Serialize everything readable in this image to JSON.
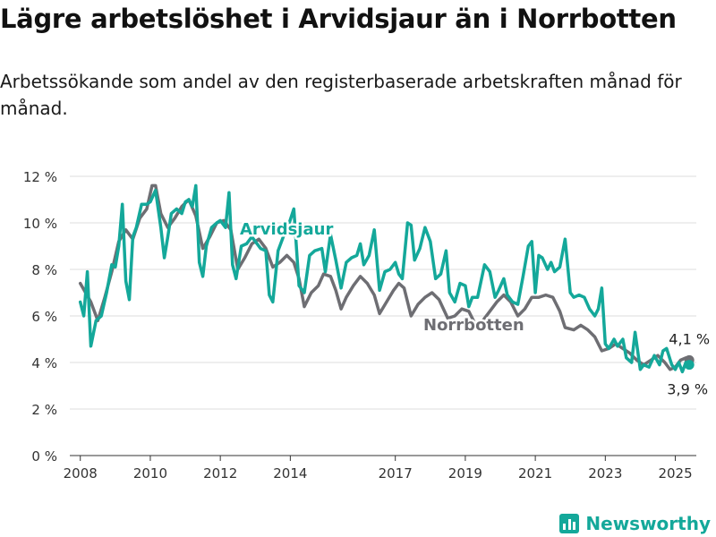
{
  "title": "Lägre arbetslöshet i Arvidsjaur än i Norrbotten",
  "subtitle": "Arbetssökande som andel av den registerbaserade arbetskraften månad för månad.",
  "brand": {
    "name": "Newsworthy",
    "icon": "bar-chart-icon",
    "color": "#14a89a"
  },
  "chart_data": {
    "type": "line",
    "title": "Lägre arbetslöshet i Arvidsjaur än i Norrbotten",
    "xlabel": "",
    "ylabel": "",
    "ylim": [
      0,
      12
    ],
    "xlim": [
      2007.7,
      2025.6
    ],
    "grid": true,
    "yticks": [
      0,
      2,
      4,
      6,
      8,
      10,
      12
    ],
    "ytick_labels": [
      "0 %",
      "2 %",
      "4 %",
      "6 %",
      "8 %",
      "10 %",
      "12 %"
    ],
    "xticks": [
      2008,
      2010,
      2012,
      2014,
      2017,
      2019,
      2021,
      2023,
      2025
    ],
    "xtick_labels": [
      "2008",
      "2010",
      "2012",
      "2014",
      "2017",
      "2019",
      "2021",
      "2023",
      "2025"
    ],
    "series": [
      {
        "name": "Arvidsjaur",
        "color": "#14a89a",
        "end_label": "3,9 %",
        "points": [
          [
            2008.0,
            6.6
          ],
          [
            2008.1,
            6.0
          ],
          [
            2008.2,
            7.9
          ],
          [
            2008.3,
            4.7
          ],
          [
            2008.45,
            5.8
          ],
          [
            2008.6,
            6.0
          ],
          [
            2008.75,
            7.0
          ],
          [
            2008.9,
            8.2
          ],
          [
            2009.0,
            8.1
          ],
          [
            2009.1,
            9.0
          ],
          [
            2009.2,
            10.8
          ],
          [
            2009.3,
            7.5
          ],
          [
            2009.4,
            6.7
          ],
          [
            2009.5,
            9.4
          ],
          [
            2009.6,
            9.8
          ],
          [
            2009.75,
            10.8
          ],
          [
            2009.9,
            10.8
          ],
          [
            2010.0,
            10.9
          ],
          [
            2010.15,
            11.4
          ],
          [
            2010.3,
            9.8
          ],
          [
            2010.4,
            8.5
          ],
          [
            2010.5,
            9.4
          ],
          [
            2010.6,
            10.4
          ],
          [
            2010.75,
            10.6
          ],
          [
            2010.9,
            10.4
          ],
          [
            2011.0,
            10.9
          ],
          [
            2011.1,
            11.0
          ],
          [
            2011.2,
            10.7
          ],
          [
            2011.3,
            11.6
          ],
          [
            2011.4,
            8.3
          ],
          [
            2011.5,
            7.7
          ],
          [
            2011.6,
            9.0
          ],
          [
            2011.75,
            9.8
          ],
          [
            2011.9,
            10.0
          ],
          [
            2012.0,
            10.1
          ],
          [
            2012.15,
            9.8
          ],
          [
            2012.25,
            11.3
          ],
          [
            2012.35,
            8.2
          ],
          [
            2012.45,
            7.6
          ],
          [
            2012.6,
            9.0
          ],
          [
            2012.75,
            9.1
          ],
          [
            2012.9,
            9.4
          ],
          [
            2013.0,
            9.2
          ],
          [
            2013.15,
            8.9
          ],
          [
            2013.3,
            8.8
          ],
          [
            2013.4,
            6.9
          ],
          [
            2013.5,
            6.6
          ],
          [
            2013.65,
            8.8
          ],
          [
            2013.8,
            9.4
          ],
          [
            2013.95,
            9.9
          ],
          [
            2014.1,
            10.6
          ],
          [
            2014.25,
            7.3
          ],
          [
            2014.4,
            7.0
          ],
          [
            2014.55,
            8.6
          ],
          [
            2014.7,
            8.8
          ],
          [
            2014.9,
            8.9
          ],
          [
            2015.0,
            7.9
          ],
          [
            2015.15,
            9.5
          ],
          [
            2015.3,
            8.4
          ],
          [
            2015.45,
            7.2
          ],
          [
            2015.6,
            8.3
          ],
          [
            2015.75,
            8.5
          ],
          [
            2015.9,
            8.6
          ],
          [
            2016.0,
            9.1
          ],
          [
            2016.1,
            8.2
          ],
          [
            2016.25,
            8.6
          ],
          [
            2016.4,
            9.7
          ],
          [
            2016.55,
            7.1
          ],
          [
            2016.7,
            7.9
          ],
          [
            2016.85,
            8.0
          ],
          [
            2017.0,
            8.3
          ],
          [
            2017.1,
            7.8
          ],
          [
            2017.2,
            7.6
          ],
          [
            2017.35,
            10.0
          ],
          [
            2017.45,
            9.9
          ],
          [
            2017.55,
            8.4
          ],
          [
            2017.7,
            8.9
          ],
          [
            2017.85,
            9.8
          ],
          [
            2018.0,
            9.2
          ],
          [
            2018.15,
            7.6
          ],
          [
            2018.3,
            7.8
          ],
          [
            2018.45,
            8.8
          ],
          [
            2018.55,
            7.0
          ],
          [
            2018.7,
            6.6
          ],
          [
            2018.85,
            7.4
          ],
          [
            2019.0,
            7.3
          ],
          [
            2019.1,
            6.4
          ],
          [
            2019.2,
            6.8
          ],
          [
            2019.35,
            6.8
          ],
          [
            2019.45,
            7.5
          ],
          [
            2019.55,
            8.2
          ],
          [
            2019.7,
            7.9
          ],
          [
            2019.85,
            6.8
          ],
          [
            2019.95,
            7.1
          ],
          [
            2020.1,
            7.6
          ],
          [
            2020.2,
            6.9
          ],
          [
            2020.35,
            6.6
          ],
          [
            2020.5,
            6.5
          ],
          [
            2020.65,
            7.7
          ],
          [
            2020.8,
            9.0
          ],
          [
            2020.9,
            9.2
          ],
          [
            2021.0,
            7.0
          ],
          [
            2021.1,
            8.6
          ],
          [
            2021.2,
            8.5
          ],
          [
            2021.35,
            8.0
          ],
          [
            2021.45,
            8.3
          ],
          [
            2021.55,
            7.9
          ],
          [
            2021.7,
            8.1
          ],
          [
            2021.85,
            9.3
          ],
          [
            2022.0,
            7.0
          ],
          [
            2022.1,
            6.8
          ],
          [
            2022.25,
            6.9
          ],
          [
            2022.4,
            6.8
          ],
          [
            2022.55,
            6.3
          ],
          [
            2022.7,
            6.0
          ],
          [
            2022.8,
            6.3
          ],
          [
            2022.9,
            7.2
          ],
          [
            2023.0,
            4.8
          ],
          [
            2023.1,
            4.6
          ],
          [
            2023.25,
            5.0
          ],
          [
            2023.35,
            4.7
          ],
          [
            2023.5,
            5.0
          ],
          [
            2023.6,
            4.2
          ],
          [
            2023.75,
            4.0
          ],
          [
            2023.85,
            5.3
          ],
          [
            2024.0,
            3.7
          ],
          [
            2024.1,
            3.9
          ],
          [
            2024.25,
            3.8
          ],
          [
            2024.4,
            4.3
          ],
          [
            2024.55,
            3.9
          ],
          [
            2024.65,
            4.5
          ],
          [
            2024.75,
            4.6
          ],
          [
            2024.9,
            3.9
          ],
          [
            2025.0,
            3.7
          ],
          [
            2025.1,
            4.0
          ],
          [
            2025.2,
            3.6
          ],
          [
            2025.3,
            4.0
          ],
          [
            2025.4,
            3.9
          ]
        ]
      },
      {
        "name": "Norrbotten",
        "color": "#6e6e73",
        "end_label": "4,1 %",
        "points": [
          [
            2008.0,
            7.4
          ],
          [
            2008.15,
            7.0
          ],
          [
            2008.3,
            6.6
          ],
          [
            2008.5,
            5.8
          ],
          [
            2008.7,
            6.8
          ],
          [
            2008.9,
            7.9
          ],
          [
            2009.1,
            9.2
          ],
          [
            2009.3,
            9.7
          ],
          [
            2009.5,
            9.3
          ],
          [
            2009.7,
            10.2
          ],
          [
            2009.9,
            10.6
          ],
          [
            2010.05,
            11.6
          ],
          [
            2010.15,
            11.6
          ],
          [
            2010.3,
            10.4
          ],
          [
            2010.5,
            9.8
          ],
          [
            2010.7,
            10.2
          ],
          [
            2010.9,
            10.7
          ],
          [
            2011.1,
            11.0
          ],
          [
            2011.3,
            10.3
          ],
          [
            2011.5,
            8.9
          ],
          [
            2011.7,
            9.4
          ],
          [
            2011.9,
            10.0
          ],
          [
            2012.1,
            10.1
          ],
          [
            2012.3,
            9.7
          ],
          [
            2012.5,
            8.0
          ],
          [
            2012.7,
            8.5
          ],
          [
            2012.9,
            9.1
          ],
          [
            2013.1,
            9.3
          ],
          [
            2013.3,
            8.9
          ],
          [
            2013.5,
            8.1
          ],
          [
            2013.7,
            8.3
          ],
          [
            2013.9,
            8.6
          ],
          [
            2014.1,
            8.3
          ],
          [
            2014.25,
            7.6
          ],
          [
            2014.4,
            6.4
          ],
          [
            2014.6,
            7.0
          ],
          [
            2014.8,
            7.3
          ],
          [
            2014.95,
            7.8
          ],
          [
            2015.15,
            7.7
          ],
          [
            2015.3,
            7.1
          ],
          [
            2015.45,
            6.3
          ],
          [
            2015.6,
            6.8
          ],
          [
            2015.8,
            7.3
          ],
          [
            2016.0,
            7.7
          ],
          [
            2016.2,
            7.4
          ],
          [
            2016.4,
            6.9
          ],
          [
            2016.55,
            6.1
          ],
          [
            2016.75,
            6.6
          ],
          [
            2016.95,
            7.1
          ],
          [
            2017.1,
            7.4
          ],
          [
            2017.25,
            7.2
          ],
          [
            2017.45,
            6.0
          ],
          [
            2017.65,
            6.5
          ],
          [
            2017.85,
            6.8
          ],
          [
            2018.05,
            7.0
          ],
          [
            2018.25,
            6.7
          ],
          [
            2018.5,
            5.9
          ],
          [
            2018.7,
            6.0
          ],
          [
            2018.9,
            6.3
          ],
          [
            2019.1,
            6.2
          ],
          [
            2019.3,
            5.6
          ],
          [
            2019.5,
            5.8
          ],
          [
            2019.7,
            6.2
          ],
          [
            2019.9,
            6.6
          ],
          [
            2020.1,
            6.9
          ],
          [
            2020.3,
            6.6
          ],
          [
            2020.5,
            6.0
          ],
          [
            2020.7,
            6.3
          ],
          [
            2020.9,
            6.8
          ],
          [
            2021.1,
            6.8
          ],
          [
            2021.3,
            6.9
          ],
          [
            2021.5,
            6.8
          ],
          [
            2021.7,
            6.2
          ],
          [
            2021.85,
            5.5
          ],
          [
            2022.1,
            5.4
          ],
          [
            2022.3,
            5.6
          ],
          [
            2022.5,
            5.4
          ],
          [
            2022.7,
            5.1
          ],
          [
            2022.9,
            4.5
          ],
          [
            2023.1,
            4.6
          ],
          [
            2023.3,
            4.8
          ],
          [
            2023.5,
            4.6
          ],
          [
            2023.7,
            4.4
          ],
          [
            2023.9,
            4.1
          ],
          [
            2024.1,
            3.9
          ],
          [
            2024.3,
            4.1
          ],
          [
            2024.5,
            4.3
          ],
          [
            2024.7,
            4.0
          ],
          [
            2024.85,
            3.7
          ],
          [
            2025.0,
            3.8
          ],
          [
            2025.15,
            4.1
          ],
          [
            2025.3,
            4.2
          ],
          [
            2025.4,
            4.1
          ]
        ]
      }
    ]
  }
}
